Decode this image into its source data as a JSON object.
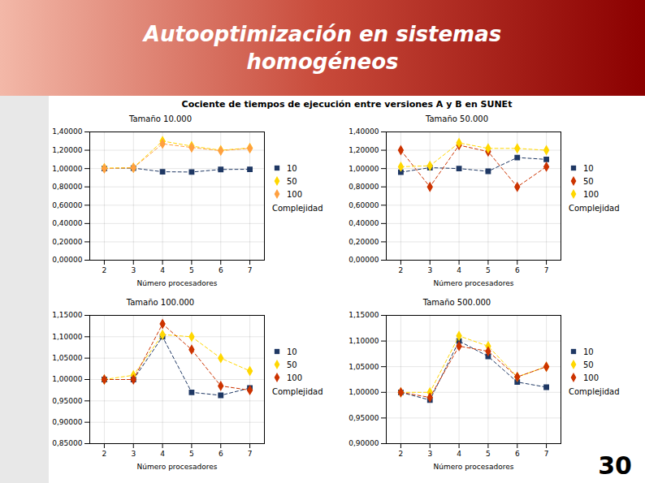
{
  "title": [
    "Autooptimización en sistemas",
    "homogéneos"
  ],
  "subtitle": "Cociente de tiempos de ejecución entre versiones  A y B en SUNEt",
  "annotations": [
    "30"
  ],
  "chart_data": [
    {
      "type": "line",
      "title": "Tamaño 10.000",
      "xlabel": "Número procesadores",
      "x": [
        2,
        3,
        4,
        5,
        6,
        7
      ],
      "xlim": [
        1.5,
        7.5
      ],
      "xticks": [
        2,
        3,
        4,
        5,
        6,
        7
      ],
      "ylim": [
        0.0,
        1.4
      ],
      "yticks": [
        {
          "value": 0.0,
          "label": "0,00000"
        },
        {
          "value": 0.2,
          "label": "0,20000"
        },
        {
          "value": 0.4,
          "label": "0,40000"
        },
        {
          "value": 0.6,
          "label": "0,60000"
        },
        {
          "value": 0.8,
          "label": "0,80000"
        },
        {
          "value": 1.0,
          "label": "1,00000"
        },
        {
          "value": 1.2,
          "label": "1,20000"
        },
        {
          "value": 1.4,
          "label": "1,40000"
        }
      ],
      "grid": true,
      "legend": "right",
      "annotations": [
        "Complejidad"
      ],
      "series": [
        {
          "name": "10",
          "color": "#1F3864",
          "marker": "square",
          "line_style": "dashed",
          "values": [
            1.0,
            1.005,
            0.965,
            0.962,
            0.99,
            0.992
          ]
        },
        {
          "name": "50",
          "color": "#FFD700",
          "marker": "diamond",
          "line_style": "dashed",
          "values": [
            1.005,
            1.01,
            1.3,
            1.245,
            1.2,
            1.225
          ]
        },
        {
          "name": "100",
          "color": "#FFA040",
          "marker": "diamond",
          "line_style": "dashed",
          "values": [
            1.0,
            1.008,
            1.27,
            1.23,
            1.195,
            1.22
          ]
        }
      ]
    },
    {
      "type": "line",
      "title": "Tamaño 50.000",
      "xlabel": "Número procesadores",
      "x": [
        2,
        3,
        4,
        5,
        6,
        7
      ],
      "xlim": [
        1.5,
        7.5
      ],
      "xticks": [
        2,
        3,
        4,
        5,
        6,
        7
      ],
      "ylim": [
        0.0,
        1.4
      ],
      "yticks": [
        {
          "value": 0.0,
          "label": "0,00000"
        },
        {
          "value": 0.2,
          "label": "0,20000"
        },
        {
          "value": 0.4,
          "label": "0,40000"
        },
        {
          "value": 0.6,
          "label": "0,60000"
        },
        {
          "value": 0.8,
          "label": "0,80000"
        },
        {
          "value": 1.0,
          "label": "1,00000"
        },
        {
          "value": 1.2,
          "label": "1,20000"
        },
        {
          "value": 1.4,
          "label": "1,40000"
        }
      ],
      "grid": true,
      "legend": "right",
      "annotations": [
        "Complejidad"
      ],
      "series": [
        {
          "name": "10",
          "color": "#1F3864",
          "marker": "square",
          "line_style": "dashed",
          "values": [
            0.96,
            1.01,
            1.0,
            0.97,
            1.12,
            1.1
          ]
        },
        {
          "name": "50",
          "color": "#CC3300",
          "marker": "diamond",
          "line_style": "dashed",
          "values": [
            1.2,
            0.8,
            1.255,
            1.185,
            0.8,
            1.02
          ]
        },
        {
          "name": "100",
          "color": "#FFD700",
          "marker": "diamond",
          "line_style": "dashed",
          "values": [
            1.02,
            1.03,
            1.28,
            1.22,
            1.22,
            1.2
          ]
        }
      ]
    },
    {
      "type": "line",
      "title": "Tamaño 100.000",
      "xlabel": "Número procesadores",
      "x": [
        2,
        3,
        4,
        5,
        6,
        7
      ],
      "xlim": [
        1.5,
        7.5
      ],
      "xticks": [
        2,
        3,
        4,
        5,
        6,
        7
      ],
      "ylim": [
        0.85,
        1.15
      ],
      "yticks": [
        {
          "value": 0.85,
          "label": "0,85000"
        },
        {
          "value": 0.9,
          "label": "0,90000"
        },
        {
          "value": 0.95,
          "label": "0,95000"
        },
        {
          "value": 1.0,
          "label": "1,00000"
        },
        {
          "value": 1.05,
          "label": "1,05000"
        },
        {
          "value": 1.1,
          "label": "1,10000"
        },
        {
          "value": 1.15,
          "label": "1,15000"
        }
      ],
      "grid": true,
      "legend": "right",
      "annotations": [
        "Complejidad"
      ],
      "series": [
        {
          "name": "10",
          "color": "#1F3864",
          "marker": "square",
          "line_style": "dashed",
          "values": [
            1.0,
            1.0,
            1.1,
            0.97,
            0.963,
            0.98
          ]
        },
        {
          "name": "50",
          "color": "#FFD700",
          "marker": "diamond",
          "line_style": "dashed",
          "values": [
            1.0,
            1.01,
            1.105,
            1.1,
            1.05,
            1.02
          ]
        },
        {
          "name": "100",
          "color": "#CC3300",
          "marker": "diamond",
          "line_style": "dashed",
          "values": [
            1.0,
            1.0,
            1.13,
            1.07,
            0.985,
            0.975
          ]
        }
      ]
    },
    {
      "type": "line",
      "title": "Tamaño 500.000",
      "xlabel": "Número procesadores",
      "x": [
        2,
        3,
        4,
        5,
        6,
        7
      ],
      "xlim": [
        1.5,
        7.5
      ],
      "xticks": [
        2,
        3,
        4,
        5,
        6,
        7
      ],
      "ylim": [
        0.9,
        1.15
      ],
      "yticks": [
        {
          "value": 0.9,
          "label": "0,90000"
        },
        {
          "value": 0.95,
          "label": "0,95000"
        },
        {
          "value": 1.0,
          "label": "1,00000"
        },
        {
          "value": 1.05,
          "label": "1,05000"
        },
        {
          "value": 1.1,
          "label": "1,10000"
        },
        {
          "value": 1.15,
          "label": "1,15000"
        }
      ],
      "grid": true,
      "legend": "right",
      "annotations": [
        "Complejidad"
      ],
      "series": [
        {
          "name": "10",
          "color": "#1F3864",
          "marker": "square",
          "line_style": "dashed",
          "values": [
            1.0,
            0.985,
            1.1,
            1.07,
            1.02,
            1.01
          ]
        },
        {
          "name": "50",
          "color": "#FFD700",
          "marker": "diamond",
          "line_style": "dashed",
          "values": [
            1.0,
            1.0,
            1.11,
            1.09,
            1.03,
            1.05
          ]
        },
        {
          "name": "100",
          "color": "#CC3300",
          "marker": "diamond",
          "line_style": "dashed",
          "values": [
            1.0,
            0.99,
            1.09,
            1.08,
            1.03,
            1.05
          ]
        }
      ]
    }
  ]
}
